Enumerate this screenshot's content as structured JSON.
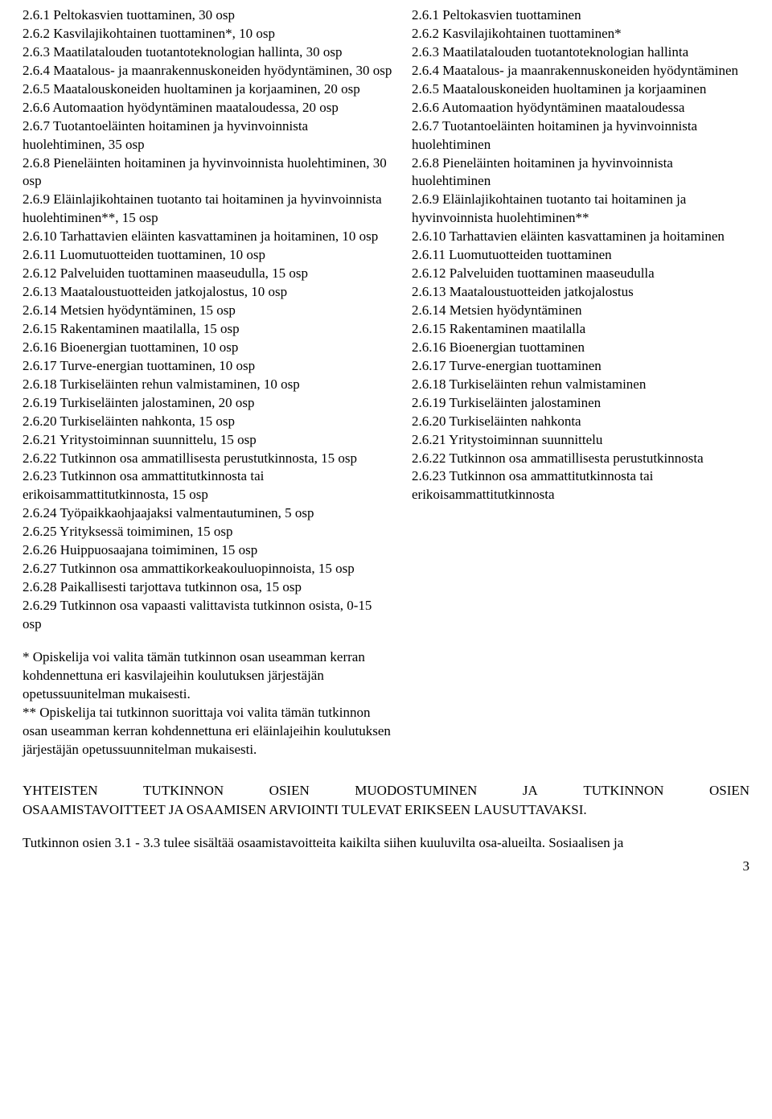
{
  "left_column": [
    "2.6.1 Peltokasvien tuottaminen, 30 osp",
    "2.6.2 Kasvilajikohtainen tuottaminen*, 10 osp",
    "2.6.3 Maatilatalouden tuotantoteknologian hallinta, 30 osp",
    "2.6.4 Maatalous- ja maanrakennuskoneiden hyödyntäminen, 30 osp",
    "2.6.5 Maatalouskoneiden huoltaminen ja korjaaminen, 20 osp",
    "2.6.6 Automaation hyödyntäminen maataloudessa, 20 osp",
    "2.6.7 Tuotantoeläinten hoitaminen ja hyvinvoinnista huolehtiminen, 35 osp",
    "2.6.8 Pieneläinten hoitaminen ja hyvinvoinnista huolehtiminen, 30 osp",
    "2.6.9 Eläinlajikohtainen tuotanto tai hoitaminen ja hyvinvoinnista huolehtiminen**, 15 osp",
    "2.6.10 Tarhattavien eläinten kasvattaminen ja hoitaminen, 10 osp",
    "2.6.11 Luomutuotteiden tuottaminen, 10 osp",
    "2.6.12 Palveluiden tuottaminen maaseudulla, 15 osp",
    "2.6.13 Maataloustuotteiden jatkojalostus, 10 osp",
    "2.6.14 Metsien hyödyntäminen, 15 osp",
    "2.6.15 Rakentaminen maatilalla, 15 osp",
    "2.6.16 Bioenergian tuottaminen, 10 osp",
    "2.6.17 Turve-energian tuottaminen, 10 osp",
    "2.6.18 Turkiseläinten rehun valmistaminen, 10 osp",
    "2.6.19 Turkiseläinten jalostaminen, 20 osp",
    "2.6.20 Turkiseläinten nahkonta, 15 osp",
    "2.6.21 Yritystoiminnan suunnittelu, 15 osp",
    "2.6.22 Tutkinnon osa ammatillisesta perustutkinnosta, 15 osp",
    "2.6.23 Tutkinnon osa ammattitutkinnosta tai erikoisammattitutkinnosta, 15 osp",
    "2.6.24 Työpaikkaohjaajaksi valmentautuminen, 5 osp",
    "2.6.25 Yrityksessä toimiminen, 15 osp",
    "2.6.26 Huippuosaajana toimiminen, 15 osp",
    "2.6.27 Tutkinnon osa ammattikorkeakouluopinnoista, 15 osp",
    "2.6.28 Paikallisesti tarjottava tutkinnon osa, 15 osp",
    "2.6.29 Tutkinnon osa vapaasti valittavista tutkinnon osista, 0-15 osp"
  ],
  "right_column": [
    "2.6.1 Peltokasvien tuottaminen",
    "2.6.2 Kasvilajikohtainen tuottaminen*",
    "2.6.3 Maatilatalouden tuotantoteknologian hallinta",
    "2.6.4 Maatalous- ja maanrakennuskoneiden hyödyntäminen",
    "2.6.5 Maatalouskoneiden huoltaminen ja korjaaminen",
    "2.6.6 Automaation hyödyntäminen maataloudessa",
    "2.6.7 Tuotantoeläinten hoitaminen ja hyvinvoinnista huolehtiminen",
    "2.6.8 Pieneläinten hoitaminen ja hyvinvoinnista huolehtiminen",
    "2.6.9 Eläinlajikohtainen tuotanto tai hoitaminen ja hyvinvoinnista huolehtiminen**",
    "2.6.10 Tarhattavien eläinten kasvattaminen ja hoitaminen",
    "2.6.11 Luomutuotteiden tuottaminen",
    "2.6.12 Palveluiden tuottaminen maaseudulla",
    "2.6.13 Maataloustuotteiden jatkojalostus",
    "2.6.14 Metsien hyödyntäminen",
    "2.6.15 Rakentaminen maatilalla",
    "2.6.16 Bioenergian tuottaminen",
    "2.6.17 Turve-energian tuottaminen",
    "2.6.18 Turkiseläinten rehun valmistaminen",
    "2.6.19 Turkiseläinten jalostaminen",
    "2.6.20 Turkiseläinten nahkonta",
    "2.6.21 Yritystoiminnan suunnittelu",
    "2.6.22 Tutkinnon osa ammatillisesta perustutkinnosta",
    "2.6.23 Tutkinnon osa ammattitutkinnosta tai erikoisammattitutkinnosta"
  ],
  "footnote1": "* Opiskelija voi valita tämän tutkinnon osan useamman kerran kohdennettuna eri kasvilajeihin koulutuksen järjestäjän opetussuunitelman mukaisesti.",
  "footnote2": "** Opiskelija tai tutkinnon suorittaja voi valita tämän tutkinnon osan useamman kerran kohdennettuna eri eläinlajeihin koulutuksen järjestäjän opetussuunnitelman mukaisesti.",
  "bottom_heading_line1_words": [
    "YHTEISTEN",
    "TUTKINNON",
    "OSIEN",
    "MUODOSTUMINEN",
    "JA",
    "TUTKINNON",
    "OSIEN"
  ],
  "bottom_heading_line2": "OSAAMISTAVOITTEET JA OSAAMISEN ARVIOINTI TULEVAT ERIKSEEN LAUSUTTAVAKSI.",
  "bottom_body": "Tutkinnon osien 3.1 - 3.3 tulee sisältää osaamistavoitteita kaikilta siihen kuuluvilta osa-alueilta. Sosiaalisen ja",
  "page_number": "3"
}
